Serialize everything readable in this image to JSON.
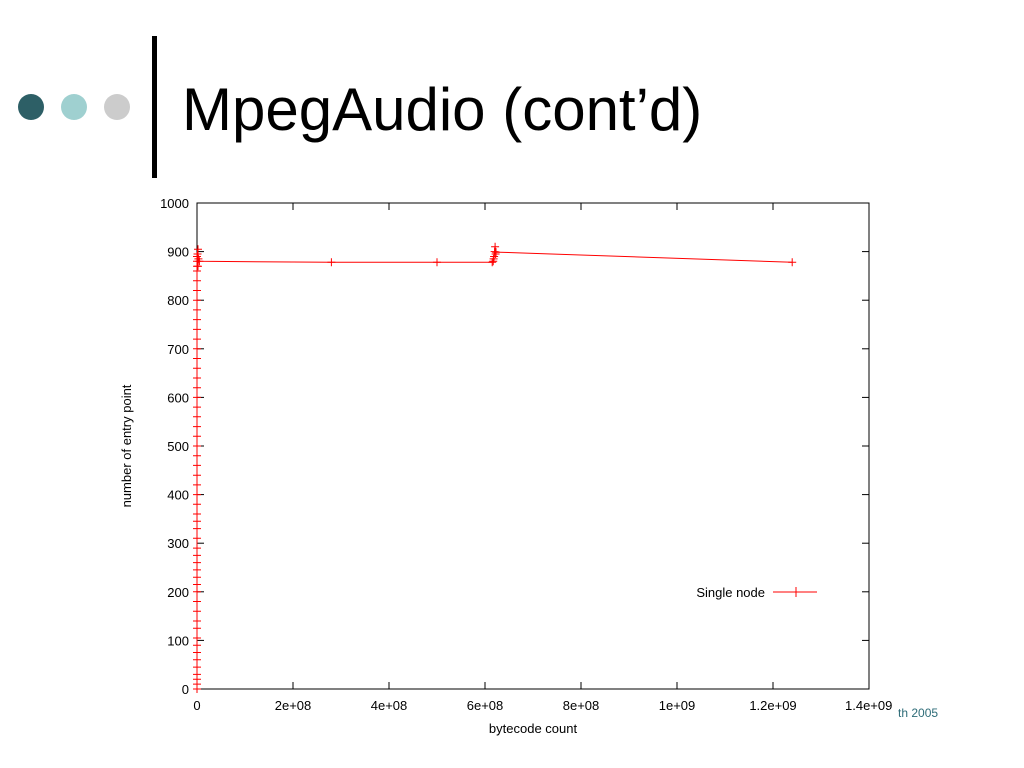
{
  "slide": {
    "title": "MpegAudio (cont’d)",
    "footer": "th 2005",
    "bullet_colors": [
      "#2d5f66",
      "#9fd0d0",
      "#cccccc"
    ],
    "accent_color": "#2e6c78"
  },
  "chart_data": {
    "type": "line",
    "title": "",
    "xlabel": "bytecode count",
    "ylabel": "number of entry point",
    "xlim": [
      0,
      1400000000
    ],
    "ylim": [
      0,
      1000
    ],
    "x_ticks": [
      0,
      200000000,
      400000000,
      600000000,
      800000000,
      1000000000,
      1200000000,
      1400000000
    ],
    "x_tick_labels": [
      "0",
      "2e+08",
      "4e+08",
      "6e+08",
      "8e+08",
      "1e+09",
      "1.2e+09",
      "1.4e+09"
    ],
    "y_ticks": [
      0,
      100,
      200,
      300,
      400,
      500,
      600,
      700,
      800,
      900,
      1000
    ],
    "y_tick_labels": [
      "0",
      "100",
      "200",
      "300",
      "400",
      "500",
      "600",
      "700",
      "800",
      "900",
      "1000"
    ],
    "grid": false,
    "legend": {
      "position": "bottom-right"
    },
    "series_color": "#ff0000",
    "series": [
      {
        "name": "Single node",
        "marker": "+",
        "x": [
          0,
          0,
          0,
          0,
          0,
          0,
          0,
          0,
          0,
          0,
          0,
          0,
          0,
          0,
          0,
          0,
          0,
          0,
          0,
          0,
          0,
          0,
          0,
          0,
          0,
          0,
          0,
          0,
          0,
          0,
          0,
          0,
          0,
          0,
          0,
          0,
          0,
          0,
          0,
          0,
          0,
          0,
          0,
          0,
          0,
          0,
          0,
          0,
          0,
          0,
          0,
          0,
          1000000,
          2000000,
          2000000,
          3000000,
          5000000,
          280000000,
          500000000,
          615000000,
          617000000,
          618000000,
          619000000,
          620000000,
          621000000,
          622000000,
          623000000,
          1240000000
        ],
        "y": [
          0,
          10,
          20,
          30,
          45,
          60,
          75,
          90,
          105,
          125,
          140,
          160,
          180,
          200,
          215,
          230,
          245,
          260,
          275,
          290,
          310,
          330,
          345,
          360,
          380,
          400,
          420,
          440,
          460,
          480,
          500,
          520,
          540,
          560,
          580,
          600,
          620,
          640,
          660,
          680,
          700,
          720,
          740,
          760,
          780,
          800,
          820,
          840,
          860,
          870,
          880,
          890,
          895,
          905,
          870,
          885,
          880,
          878,
          878,
          878,
          880,
          885,
          890,
          900,
          910,
          895,
          899,
          878
        ]
      }
    ]
  }
}
